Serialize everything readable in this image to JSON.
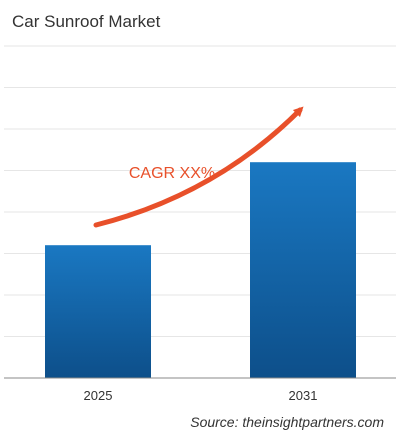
{
  "chart_data": {
    "type": "bar",
    "title": "Car Sunroof Market",
    "categories": [
      "2025",
      "2031"
    ],
    "values": [
      40,
      65
    ],
    "ylim": [
      0,
      100
    ],
    "grid": true,
    "annotation": "CAGR XX%",
    "source": "Source: theinsightpartners.com"
  },
  "colors": {
    "bar_top": "#1a78c2",
    "bar_bottom": "#0d4f8a",
    "arrow": "#e8502a",
    "annotation_text": "#e8502a",
    "grid": "#e6e6e6",
    "axis": "#888888"
  }
}
